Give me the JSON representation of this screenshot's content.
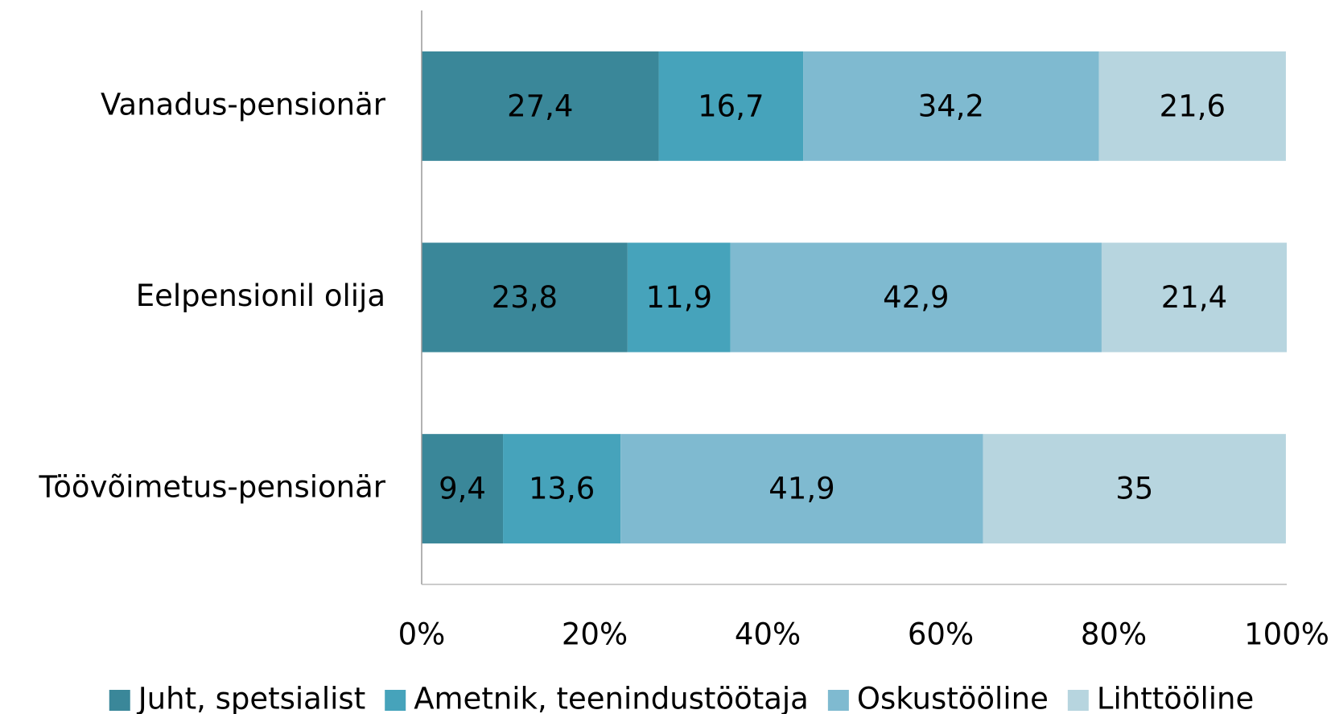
{
  "chart_data": {
    "type": "stacked_bar_horizontal",
    "categories": [
      "Vanadus-pensionär",
      "Eelpensionil olija",
      "Töövõimetus-pensionär"
    ],
    "series": [
      {
        "name": "Juht, spetsialist",
        "color": "#3a8799",
        "values": [
          27.4,
          23.8,
          9.4
        ],
        "value_labels": [
          "27,4",
          "23,8",
          "9,4"
        ]
      },
      {
        "name": "Ametnik, teenindustöötaja",
        "color": "#46a3bb",
        "values": [
          16.7,
          11.9,
          13.6
        ],
        "value_labels": [
          "16,7",
          "11,9",
          "13,6"
        ]
      },
      {
        "name": "Oskustööline",
        "color": "#7fbad0",
        "values": [
          34.2,
          42.9,
          41.9
        ],
        "value_labels": [
          "34,2",
          "42,9",
          "41,9"
        ]
      },
      {
        "name": "Lihttööline",
        "color": "#b7d5df",
        "values": [
          21.6,
          21.4,
          35
        ],
        "value_labels": [
          "21,6",
          "21,4",
          "35"
        ]
      }
    ],
    "xlim": [
      0,
      100
    ],
    "xticks": [
      {
        "value": 0,
        "label": "0%"
      },
      {
        "value": 20,
        "label": "20%"
      },
      {
        "value": 40,
        "label": "40%"
      },
      {
        "value": 60,
        "label": "60%"
      },
      {
        "value": 80,
        "label": "80%"
      },
      {
        "value": 100,
        "label": "100%"
      }
    ],
    "legend": "bottom"
  }
}
